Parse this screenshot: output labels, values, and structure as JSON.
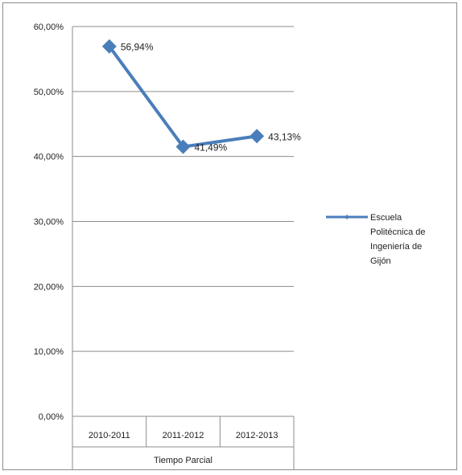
{
  "chart_data": {
    "type": "line",
    "title": "",
    "xlabel": "",
    "ylabel": "",
    "categories": [
      "2010-2011",
      "2011-2012",
      "2012-2013"
    ],
    "group_label": "Tiempo Parcial",
    "series": [
      {
        "name": "Escuela Politécnica de Ingeniería de Gijón",
        "legend_lines": [
          "Escuela",
          "Politécnica de",
          "Ingeniería de",
          "Gijón"
        ],
        "values": [
          56.94,
          41.49,
          43.13
        ],
        "labels": [
          "56,94%",
          "41,49%",
          "43,13%"
        ],
        "color": "#4a7ebb"
      }
    ],
    "ylim": [
      0,
      60
    ],
    "yticks": [
      0,
      10,
      20,
      30,
      40,
      50,
      60
    ],
    "ytick_labels": [
      "0,00%",
      "10,00%",
      "20,00%",
      "30,00%",
      "40,00%",
      "50,00%",
      "60,00%"
    ],
    "grid": true,
    "legend": "right"
  }
}
